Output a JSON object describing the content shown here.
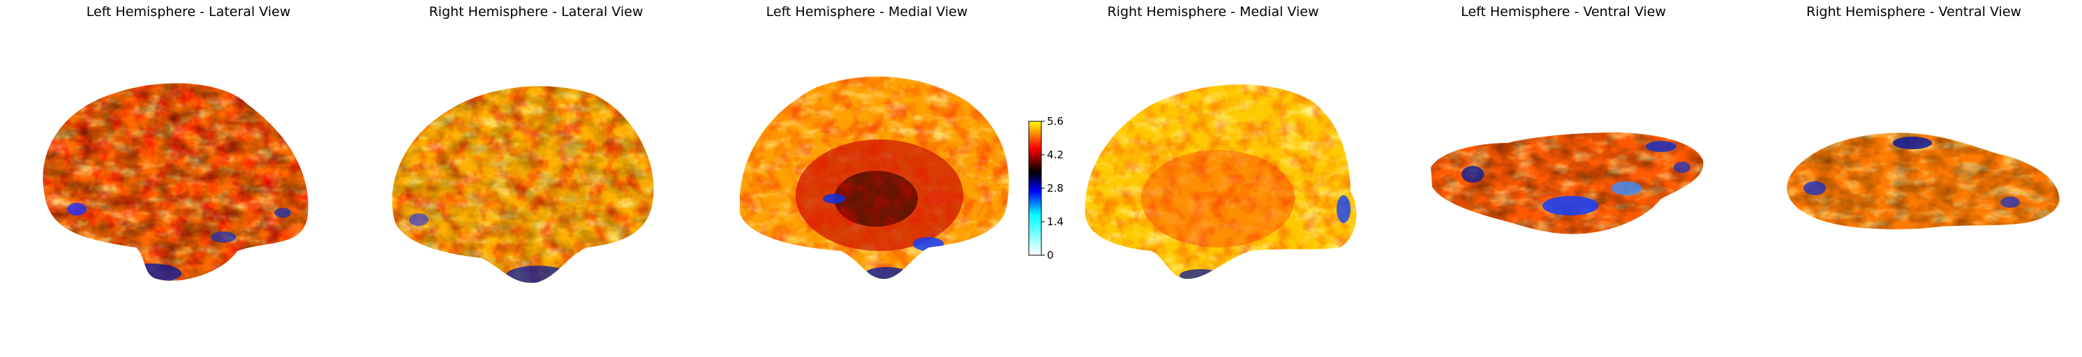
{
  "views": [
    {
      "title": "Left Hemisphere - Lateral View"
    },
    {
      "title": "Right Hemisphere - Lateral View"
    },
    {
      "title": "Left Hemisphere - Medial View"
    },
    {
      "title": "Right Hemisphere - Medial View"
    },
    {
      "title": "Left Hemisphere - Ventral View"
    },
    {
      "title": "Right Hemisphere - Ventral View"
    }
  ],
  "colorbar": {
    "min": 0,
    "max": 5.6,
    "ticks": [
      "5.6",
      "4.2",
      "2.8",
      "1.4",
      "0"
    ],
    "colormap_stops": [
      "#ffffff",
      "#00ffff",
      "#0000ff",
      "#000000",
      "#ff0000",
      "#ffff00"
    ]
  }
}
